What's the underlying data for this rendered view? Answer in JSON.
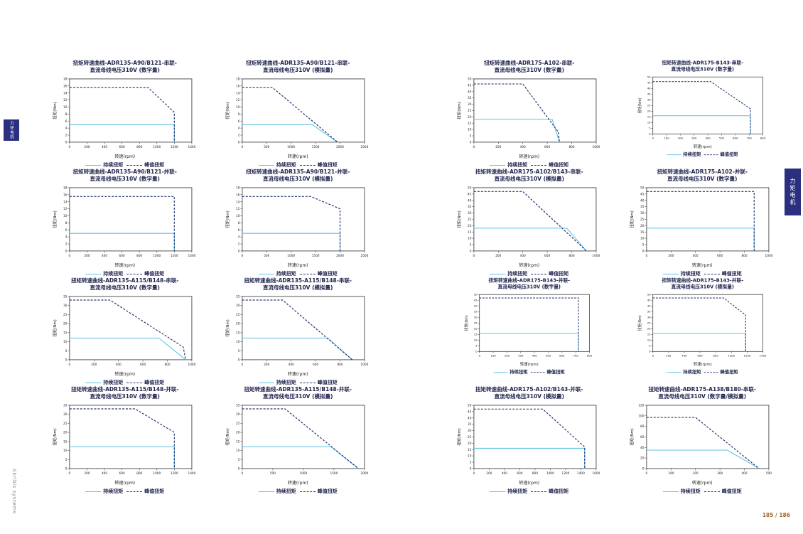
{
  "page": {
    "left_tab": "力矩电机",
    "right_tab": "力矩电机",
    "brand_vertical": "Akribis systems",
    "page_number": "185 / 186"
  },
  "legend": {
    "continuous": "持续扭矩",
    "peak": "峰值扭矩"
  },
  "axis": {
    "x_label": "转速(rpm)",
    "y_label": "扭矩(Nm)"
  },
  "colors": {
    "continuous_line": "#5bc3e6",
    "peak_line": "#24356f",
    "title_text": "#22264f",
    "tab_bg": "#2b2f80",
    "page_number": "#a5672d",
    "axis_stroke": "#444444",
    "tick_text": "#222222"
  },
  "chart_data": [
    {
      "type": "line",
      "page": "left",
      "title_line1": "扭矩转速曲线-ADR135-A90/B121-串联-",
      "title_line2": "直流母线电压310V (数字量)",
      "xlabel": "转速(rpm)",
      "ylabel": "扭矩(Nm)",
      "xlim": [
        0,
        1400
      ],
      "xtick": 200,
      "ylim": [
        0,
        18
      ],
      "ytick": 2,
      "series": [
        {
          "name": "持续扭矩",
          "role": "continuous",
          "points": [
            [
              0,
              5
            ],
            [
              1200,
              5
            ],
            [
              1200,
              0
            ]
          ]
        },
        {
          "name": "峰值扭矩",
          "role": "peak",
          "points": [
            [
              0,
              15.5
            ],
            [
              900,
              15.5
            ],
            [
              1200,
              8.5
            ],
            [
              1200,
              0
            ]
          ]
        }
      ]
    },
    {
      "type": "line",
      "page": "left",
      "title_line1": "扭矩转速曲线-ADR135-A90/B121-串联-",
      "title_line2": "直流母线电压310V (模拟量)",
      "xlabel": "转速(rpm)",
      "ylabel": "扭矩(Nm)",
      "xlim": [
        0,
        2500
      ],
      "xtick": 500,
      "ylim": [
        0,
        18
      ],
      "ytick": 2,
      "series": [
        {
          "name": "持续扭矩",
          "role": "continuous",
          "points": [
            [
              0,
              5
            ],
            [
              1430,
              5
            ],
            [
              1950,
              0
            ]
          ]
        },
        {
          "name": "峰值扭矩",
          "role": "peak",
          "points": [
            [
              0,
              15.5
            ],
            [
              620,
              15.5
            ],
            [
              1950,
              0
            ]
          ]
        }
      ]
    },
    {
      "type": "line",
      "page": "left",
      "title_line1": "扭矩转速曲线-ADR135-A90/B121-并联-",
      "title_line2": "直流母线电压310V (数字量)",
      "xlabel": "转速(rpm)",
      "ylabel": "扭矩(Nm)",
      "xlim": [
        0,
        1400
      ],
      "xtick": 200,
      "ylim": [
        0,
        18
      ],
      "ytick": 2,
      "series": [
        {
          "name": "持续扭矩",
          "role": "continuous",
          "points": [
            [
              0,
              5
            ],
            [
              1200,
              5
            ],
            [
              1200,
              0
            ]
          ]
        },
        {
          "name": "峰值扭矩",
          "role": "peak",
          "points": [
            [
              0,
              15.5
            ],
            [
              1200,
              15.5
            ],
            [
              1200,
              0
            ]
          ]
        }
      ]
    },
    {
      "type": "line",
      "page": "left",
      "title_line1": "扭矩转速曲线-ADR135-A90/B121-并联-",
      "title_line2": "直流母线电压310V (模拟量)",
      "xlabel": "转速(rpm)",
      "ylabel": "扭矩(Nm)",
      "xlim": [
        0,
        2500
      ],
      "xtick": 500,
      "ylim": [
        0,
        18
      ],
      "ytick": 2,
      "series": [
        {
          "name": "持续扭矩",
          "role": "continuous",
          "points": [
            [
              0,
              5
            ],
            [
              2000,
              5
            ],
            [
              2000,
              0
            ]
          ]
        },
        {
          "name": "峰值扭矩",
          "role": "peak",
          "points": [
            [
              0,
              15.5
            ],
            [
              1400,
              15.5
            ],
            [
              2000,
              12
            ],
            [
              2000,
              0
            ]
          ]
        }
      ]
    },
    {
      "type": "line",
      "page": "left",
      "title_line1": "扭矩转速曲线-ADR135-A115/B148-串联-",
      "title_line2": "直流母线电压310V (数字量)",
      "xlabel": "转速(rpm)",
      "ylabel": "扭矩(Nm)",
      "xlim": [
        0,
        1000
      ],
      "xtick": 200,
      "ylim": [
        0,
        35
      ],
      "ytick": 5,
      "series": [
        {
          "name": "持续扭矩",
          "role": "continuous",
          "points": [
            [
              0,
              12
            ],
            [
              730,
              12
            ],
            [
              950,
              0
            ]
          ]
        },
        {
          "name": "峰值扭矩",
          "role": "peak",
          "points": [
            [
              0,
              33
            ],
            [
              330,
              33
            ],
            [
              930,
              7
            ],
            [
              950,
              0
            ]
          ]
        }
      ]
    },
    {
      "type": "line",
      "page": "left",
      "title_line1": "扭矩转速曲线-ADR135-A115/B148-串联-",
      "title_line2": "直流母线电压310V (模拟量)",
      "xlabel": "转速(rpm)",
      "ylabel": "扭矩(Nm)",
      "xlim": [
        0,
        1000
      ],
      "xtick": 200,
      "ylim": [
        0,
        35
      ],
      "ytick": 5,
      "series": [
        {
          "name": "持续扭矩",
          "role": "continuous",
          "points": [
            [
              0,
              12
            ],
            [
              700,
              12
            ],
            [
              900,
              0
            ]
          ]
        },
        {
          "name": "峰值扭矩",
          "role": "peak",
          "points": [
            [
              0,
              33
            ],
            [
              330,
              33
            ],
            [
              900,
              0
            ]
          ]
        }
      ]
    },
    {
      "type": "line",
      "page": "left",
      "title_line1": "扭矩转速曲线-ADR135-A115/B148-并联-",
      "title_line2": "直流母线电压310V (数字量)",
      "xlabel": "转速(rpm)",
      "ylabel": "扭矩(Nm)",
      "xlim": [
        0,
        1400
      ],
      "xtick": 200,
      "ylim": [
        0,
        35
      ],
      "ytick": 5,
      "series": [
        {
          "name": "持续扭矩",
          "role": "continuous",
          "points": [
            [
              0,
              12
            ],
            [
              1200,
              12
            ],
            [
              1200,
              0
            ]
          ]
        },
        {
          "name": "峰值扭矩",
          "role": "peak",
          "points": [
            [
              0,
              33
            ],
            [
              750,
              33
            ],
            [
              1200,
              20
            ],
            [
              1200,
              0
            ]
          ]
        }
      ]
    },
    {
      "type": "line",
      "page": "left",
      "title_line1": "扭矩转速曲线-ADR135-A115/B148-并联-",
      "title_line2": "直流母线电压310V (模拟量)",
      "xlabel": "转速(rpm)",
      "ylabel": "扭矩(Nm)",
      "xlim": [
        0,
        2000
      ],
      "xtick": 500,
      "ylim": [
        0,
        35
      ],
      "ytick": 5,
      "series": [
        {
          "name": "持续扭矩",
          "role": "continuous",
          "points": [
            [
              0,
              12
            ],
            [
              1450,
              12
            ],
            [
              1900,
              0
            ]
          ]
        },
        {
          "name": "峰值扭矩",
          "role": "peak",
          "points": [
            [
              0,
              33
            ],
            [
              700,
              33
            ],
            [
              1900,
              0
            ]
          ]
        }
      ]
    },
    {
      "type": "line",
      "page": "right",
      "title_line1": "扭矩转速曲线-ADR175-A102-串联-",
      "title_line2": "直流母线电压310V (数字量)",
      "xlabel": "转速(rpm)",
      "ylabel": "扭矩(Nm)",
      "xlim": [
        0,
        1000
      ],
      "xtick": 200,
      "ylim": [
        0,
        50
      ],
      "ytick": 5,
      "series": [
        {
          "name": "持续扭矩",
          "role": "continuous",
          "points": [
            [
              0,
              18
            ],
            [
              640,
              18
            ],
            [
              700,
              0
            ]
          ]
        },
        {
          "name": "峰值扭矩",
          "role": "peak",
          "points": [
            [
              0,
              46
            ],
            [
              400,
              46
            ],
            [
              690,
              8
            ],
            [
              700,
              0
            ]
          ]
        }
      ]
    },
    {
      "type": "line",
      "page": "right",
      "compact": true,
      "title_line1": "扭矩转速曲线-ADR175-B143-串联-",
      "title_line2": "直流母线电压310V (数字量)",
      "xlabel": "转速(rpm)",
      "ylabel": "扭矩(Nm)",
      "xlim": [
        0,
        800
      ],
      "xtick": 100,
      "ylim": [
        0,
        50
      ],
      "ytick": 5,
      "series": [
        {
          "name": "持续扭矩",
          "role": "continuous",
          "points": [
            [
              0,
              16
            ],
            [
              710,
              16
            ],
            [
              710,
              0
            ]
          ]
        },
        {
          "name": "峰值扭矩",
          "role": "peak",
          "points": [
            [
              0,
              46
            ],
            [
              420,
              46
            ],
            [
              710,
              22
            ],
            [
              710,
              0
            ]
          ]
        }
      ]
    },
    {
      "type": "line",
      "page": "right",
      "title_line1": "扭矩转速曲线-ADR175-A102/B143-串联-",
      "title_line2": "直流母线电压310V (模拟量)",
      "xlabel": "转速(rpm)",
      "ylabel": "扭矩(Nm)",
      "xlim": [
        0,
        1000
      ],
      "xtick": 200,
      "ylim": [
        0,
        50
      ],
      "ytick": 5,
      "series": [
        {
          "name": "持续扭矩",
          "role": "continuous",
          "points": [
            [
              0,
              18
            ],
            [
              760,
              18
            ],
            [
              920,
              0
            ]
          ]
        },
        {
          "name": "峰值扭矩",
          "role": "peak",
          "points": [
            [
              0,
              47
            ],
            [
              400,
              47
            ],
            [
              920,
              0
            ]
          ]
        }
      ]
    },
    {
      "type": "line",
      "page": "right",
      "title_line1": "扭矩转速曲线-ADR175-A102-并联-",
      "title_line2": "直流母线电压310V (数字量)",
      "xlabel": "转速(rpm)",
      "ylabel": "扭矩(Nm)",
      "xlim": [
        0,
        1000
      ],
      "xtick": 200,
      "ylim": [
        0,
        50
      ],
      "ytick": 5,
      "series": [
        {
          "name": "持续扭矩",
          "role": "continuous",
          "points": [
            [
              0,
              18
            ],
            [
              880,
              18
            ],
            [
              880,
              0
            ]
          ]
        },
        {
          "name": "峰值扭矩",
          "role": "peak",
          "points": [
            [
              0,
              47
            ],
            [
              880,
              47
            ],
            [
              880,
              0
            ]
          ]
        }
      ]
    },
    {
      "type": "line",
      "page": "right",
      "compact": true,
      "title_line1": "扭矩转速曲线-ADR175-B143-并联-",
      "title_line2": "直流母线电压310V (数字量)",
      "xlabel": "转速(rpm)",
      "ylabel": "扭矩(Nm)",
      "xlim": [
        0,
        800
      ],
      "xtick": 100,
      "ylim": [
        0,
        50
      ],
      "ytick": 5,
      "series": [
        {
          "name": "持续扭矩",
          "role": "continuous",
          "points": [
            [
              0,
              16
            ],
            [
              720,
              16
            ],
            [
              720,
              0
            ]
          ]
        },
        {
          "name": "峰值扭矩",
          "role": "peak",
          "points": [
            [
              0,
              47
            ],
            [
              720,
              47
            ],
            [
              720,
              0
            ]
          ]
        }
      ]
    },
    {
      "type": "line",
      "page": "right",
      "compact": true,
      "title_line1": "扭矩转速曲线-ADR175-B143-并联-",
      "title_line2": "直流母线电压310V (模拟量)",
      "xlabel": "转速(rpm)",
      "ylabel": "扭矩(Nm)",
      "xlim": [
        0,
        1400
      ],
      "xtick": 200,
      "ylim": [
        0,
        50
      ],
      "ytick": 5,
      "series": [
        {
          "name": "持续扭矩",
          "role": "continuous",
          "points": [
            [
              0,
              16
            ],
            [
              1180,
              16
            ],
            [
              1180,
              0
            ]
          ]
        },
        {
          "name": "峰值扭矩",
          "role": "peak",
          "points": [
            [
              0,
              47
            ],
            [
              900,
              47
            ],
            [
              1180,
              32
            ],
            [
              1180,
              0
            ]
          ]
        }
      ]
    },
    {
      "type": "line",
      "page": "right",
      "title_line1": "扭矩转速曲线-ADR175-A102/B143-并联-",
      "title_line2": "直流母线电压310V (模拟量)",
      "xlabel": "转速(rpm)",
      "ylabel": "扭矩(Nm)",
      "xlim": [
        0,
        1600
      ],
      "xtick": 200,
      "ylim": [
        0,
        50
      ],
      "ytick": 5,
      "series": [
        {
          "name": "持续扭矩",
          "role": "continuous",
          "points": [
            [
              0,
              16
            ],
            [
              1450,
              16
            ],
            [
              1450,
              0
            ]
          ]
        },
        {
          "name": "峰值扭矩",
          "role": "peak",
          "points": [
            [
              0,
              47
            ],
            [
              900,
              47
            ],
            [
              1450,
              17
            ],
            [
              1450,
              0
            ]
          ]
        }
      ]
    },
    {
      "type": "line",
      "page": "right",
      "title_line1": "扭矩转速曲线-ADR175-A138/B180-串联-",
      "title_line2": "直流母线电压310V (数字量/模拟量)",
      "xlabel": "转速(rpm)",
      "ylabel": "扭矩(Nm)",
      "xlim": [
        0,
        500
      ],
      "xtick": 100,
      "ylim": [
        0,
        120
      ],
      "ytick": 20,
      "series": [
        {
          "name": "持续扭矩",
          "role": "continuous",
          "points": [
            [
              0,
              35
            ],
            [
              330,
              35
            ],
            [
              460,
              0
            ]
          ]
        },
        {
          "name": "峰值扭矩",
          "role": "peak",
          "points": [
            [
              0,
              97
            ],
            [
              200,
              97
            ],
            [
              460,
              0
            ]
          ]
        }
      ]
    }
  ]
}
